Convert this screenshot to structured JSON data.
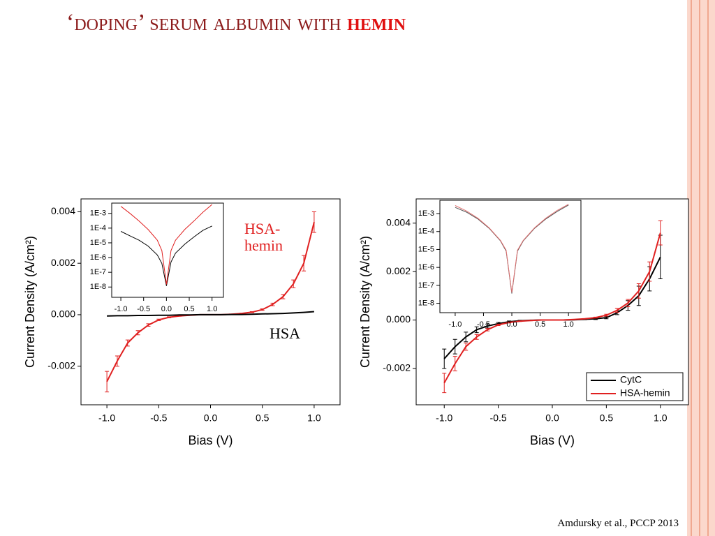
{
  "title": "‘doping’ serum albumin with",
  "title_highlight": "hemin",
  "citation": "Amdursky et al., PCCP 2013",
  "chart_data": [
    {
      "type": "line",
      "xlabel": "Bias (V)",
      "ylabel": "Current Density (A/cm²)",
      "legend": "inline",
      "xlim": [
        -1.25,
        1.25
      ],
      "ylim": [
        -0.0035,
        0.0045
      ],
      "xticks": [
        {
          "value": -1,
          "label": "-1.0"
        },
        {
          "value": -0.5,
          "label": "-0.5"
        },
        {
          "value": 0,
          "label": "0.0"
        },
        {
          "value": 0.5,
          "label": "0.5"
        },
        {
          "value": 1,
          "label": "1.0"
        }
      ],
      "yticks": [
        -0.002,
        {
          "value": 0,
          "label": "0.000"
        },
        0.002,
        0.004
      ],
      "x": [
        -1,
        -0.9,
        -0.8,
        -0.7,
        -0.6,
        -0.5,
        -0.4,
        -0.3,
        -0.2,
        -0.1,
        0,
        0.1,
        0.2,
        0.3,
        0.4,
        0.5,
        0.6,
        0.7,
        0.8,
        0.9,
        1
      ],
      "series": [
        {
          "name": "HSA-hemin",
          "color": "#e02020",
          "values": [
            -0.0026,
            -0.0018,
            -0.0011,
            -0.0007,
            -0.0004,
            -0.0002,
            -0.0001,
            -5e-05,
            -2e-05,
            0,
            0,
            0,
            2e-05,
            5e-05,
            0.0001,
            0.0002,
            0.0004,
            0.0007,
            0.0012,
            0.002,
            0.0036
          ],
          "errors": [
            0.0004,
            0.0002,
            0.00012,
            8e-05,
            5e-05,
            3e-05,
            2e-05,
            1e-05,
            1e-05,
            0,
            0,
            0,
            1e-05,
            1e-05,
            2e-05,
            3e-05,
            5e-05,
            8e-05,
            0.00015,
            0.0003,
            0.0004
          ]
        },
        {
          "name": "HSA",
          "color": "#000000",
          "values": [
            -5e-05,
            -4e-05,
            -4e-05,
            -3e-05,
            -3e-05,
            -2e-05,
            -2e-05,
            -1e-05,
            -1e-05,
            0,
            0,
            0,
            1e-05,
            1e-05,
            2e-05,
            3e-05,
            4e-05,
            5e-05,
            7e-05,
            9e-05,
            0.00012
          ]
        }
      ]
    },
    {
      "type": "line",
      "yscale": "log",
      "xlim": [
        -1.2,
        1.25
      ],
      "ylim": [
        2e-09,
        0.005
      ],
      "xticks": [
        {
          "value": -1,
          "label": "-1.0"
        },
        {
          "value": -0.5,
          "label": "-0.5"
        },
        {
          "value": 0,
          "label": "0.0"
        },
        {
          "value": 0.5,
          "label": "0.5"
        },
        {
          "value": 1,
          "label": "1.0"
        }
      ],
      "yticks": [
        {
          "value": 1e-08,
          "label": "1E-8"
        },
        {
          "value": 1e-07,
          "label": "1E-7"
        },
        {
          "value": 1e-06,
          "label": "1E-6"
        },
        {
          "value": 1e-05,
          "label": "1E-5"
        },
        {
          "value": 0.0001,
          "label": "1E-4"
        },
        {
          "value": 0.001,
          "label": "1E-3"
        }
      ],
      "x": [
        -1,
        -0.8,
        -0.6,
        -0.4,
        -0.2,
        -0.1,
        0,
        0.1,
        0.2,
        0.4,
        0.6,
        0.8,
        1
      ],
      "series": [
        {
          "color": "#000000",
          "values": [
            6e-05,
            3e-05,
            1.5e-05,
            6e-06,
            1.5e-06,
            4e-07,
            1.2e-08,
            5e-07,
            2e-06,
            8e-06,
            2.5e-05,
            7e-05,
            0.00014
          ]
        },
        {
          "color": "#e02020",
          "values": [
            0.003,
            0.001,
            0.0003,
            8e-05,
            1.5e-05,
            3e-06,
            1.5e-08,
            3e-06,
            1.5e-05,
            8e-05,
            0.0003,
            0.0012,
            0.004
          ]
        }
      ]
    },
    {
      "type": "line",
      "xlabel": "Bias (V)",
      "ylabel": "Current Density (A/cm²)",
      "legend": "lower right",
      "xlim": [
        -1.26,
        1.26
      ],
      "ylim": [
        -0.0035,
        0.005
      ],
      "xticks": [
        {
          "value": -1,
          "label": "-1.0"
        },
        {
          "value": -0.5,
          "label": "-0.5"
        },
        {
          "value": 0,
          "label": "0.0"
        },
        {
          "value": 0.5,
          "label": "0.5"
        },
        {
          "value": 1,
          "label": "1.0"
        }
      ],
      "yticks": [
        -0.002,
        {
          "value": 0,
          "label": "0.000"
        },
        0.002,
        0.004
      ],
      "x": [
        -1,
        -0.9,
        -0.8,
        -0.7,
        -0.6,
        -0.5,
        -0.4,
        -0.3,
        -0.2,
        -0.1,
        0,
        0.1,
        0.2,
        0.3,
        0.4,
        0.5,
        0.6,
        0.7,
        0.8,
        0.9,
        1
      ],
      "series": [
        {
          "name": "CytC",
          "color": "#000000",
          "values": [
            -0.0016,
            -0.0011,
            -0.0007,
            -0.0004,
            -0.00025,
            -0.00015,
            -7e-05,
            -3e-05,
            -1e-05,
            0,
            0,
            0,
            1e-05,
            3e-05,
            5e-05,
            0.0001,
            0.0003,
            0.0006,
            0.001,
            0.0017,
            0.0026
          ],
          "errors": [
            0.0004,
            0.0003,
            0.0002,
            0.00012,
            8e-05,
            5e-05,
            3e-05,
            2e-05,
            1e-05,
            0,
            0,
            0,
            1e-05,
            2e-05,
            3e-05,
            5e-05,
            8e-05,
            0.0002,
            0.0004,
            0.0005,
            0.0009
          ]
        },
        {
          "name": "HSA-hemin",
          "color": "#e02020",
          "values": [
            -0.0026,
            -0.0018,
            -0.0011,
            -0.0007,
            -0.0004,
            -0.0002,
            -0.0001,
            -5e-05,
            -2e-05,
            0,
            0,
            0,
            2e-05,
            5e-05,
            0.0001,
            0.0002,
            0.0004,
            0.0007,
            0.0012,
            0.002,
            0.0036
          ],
          "errors": [
            0.0004,
            0.0003,
            0.00015,
            0.0001,
            5e-05,
            3e-05,
            2e-05,
            1e-05,
            1e-05,
            0,
            0,
            0,
            1e-05,
            1e-05,
            2e-05,
            4e-05,
            8e-05,
            0.00015,
            0.0003,
            0.0004,
            0.0005
          ]
        }
      ]
    },
    {
      "type": "line",
      "yscale": "log",
      "xlim": [
        -1.27,
        1.22
      ],
      "ylim": [
        3e-09,
        0.0055
      ],
      "xticks": [
        {
          "value": -1,
          "label": "-1.0"
        },
        {
          "value": -0.5,
          "label": "-0.5"
        },
        {
          "value": 0,
          "label": "0.0"
        },
        {
          "value": 0.5,
          "label": "0.5"
        },
        {
          "value": 1,
          "label": "1.0"
        }
      ],
      "yticks": [
        {
          "value": 1e-08,
          "label": "1E-8"
        },
        {
          "value": 1e-07,
          "label": "1E-7"
        },
        {
          "value": 1e-06,
          "label": "1E-6"
        },
        {
          "value": 1e-05,
          "label": "1E-5"
        },
        {
          "value": 0.0001,
          "label": "1E-4"
        },
        {
          "value": 0.001,
          "label": "1E-3"
        }
      ],
      "x": [
        -1,
        -0.8,
        -0.6,
        -0.4,
        -0.2,
        -0.1,
        0,
        0.1,
        0.2,
        0.4,
        0.6,
        0.8,
        1
      ],
      "series": [
        {
          "color": "#555555",
          "values": [
            0.0022,
            0.0012,
            0.0005,
            0.00015,
            3e-05,
            8e-06,
            3.5e-08,
            8e-06,
            3e-05,
            0.00015,
            0.0005,
            0.0013,
            0.003
          ]
        },
        {
          "color": "#e07070",
          "values": [
            0.0028,
            0.0014,
            0.00055,
            0.00016,
            3.2e-05,
            9e-06,
            4e-08,
            9e-06,
            3.2e-05,
            0.00016,
            0.00055,
            0.0015,
            0.0033
          ]
        }
      ]
    }
  ]
}
